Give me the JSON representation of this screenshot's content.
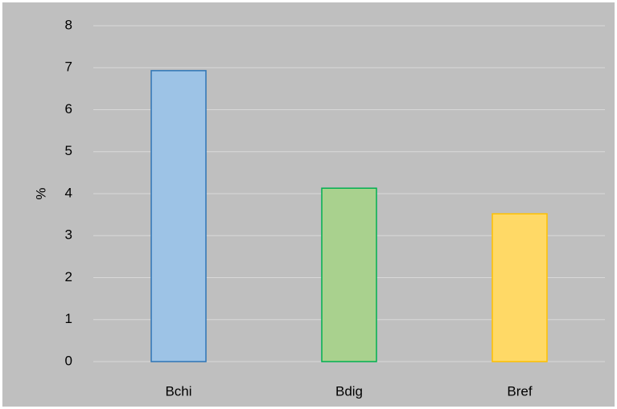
{
  "chart_data": {
    "type": "bar",
    "ylabel": "%",
    "categories": [
      "Bchi",
      "Bdig",
      "Bref"
    ],
    "values": [
      6.93,
      4.13,
      3.52
    ],
    "colors": [
      "#9dc3e6",
      "#a9d18e",
      "#ffd966"
    ],
    "edge_colors": [
      "#2e75b6",
      "#00b050",
      "#ffc000"
    ],
    "ylim": [
      0,
      8
    ],
    "yticks": [
      0,
      1,
      2,
      3,
      4,
      5,
      6,
      7,
      8
    ],
    "grid": true
  }
}
